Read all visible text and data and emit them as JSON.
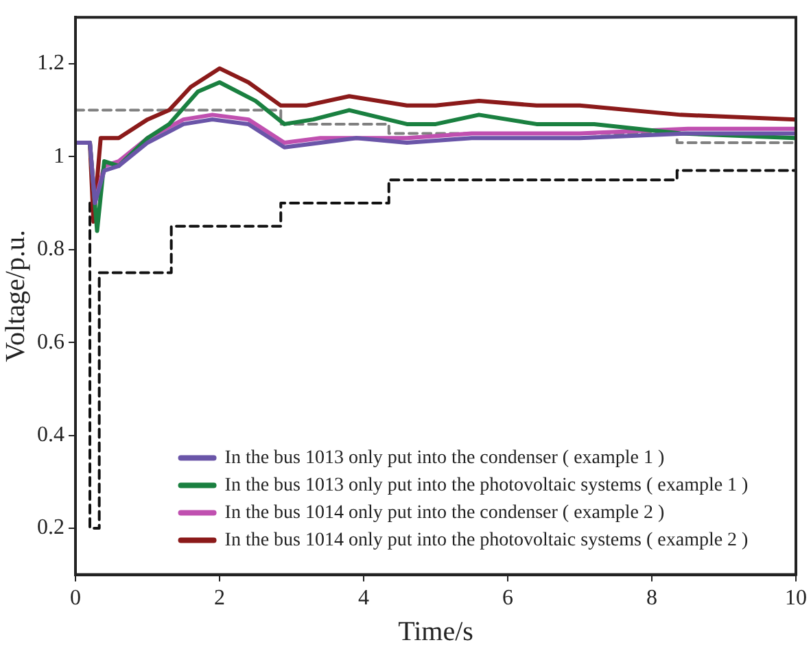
{
  "chart_data": {
    "type": "line",
    "xlabel": "Time/s",
    "ylabel": "Voltage/p.u.",
    "xlim": [
      0,
      10
    ],
    "xticks": [
      0,
      2,
      4,
      6,
      8,
      10
    ],
    "ylim": [
      0.1,
      1.3
    ],
    "yticks": [
      0.2,
      0.4,
      0.6,
      0.8,
      1.0,
      1.2
    ],
    "grid": false,
    "legend": "bottom",
    "marker": "none",
    "line_style": "solid",
    "series": [
      {
        "name": "In the bus 1013 only put into the condenser ( example 1 )",
        "color": "#6a55a8",
        "x": [
          0,
          0.2,
          0.27,
          0.4,
          0.6,
          1.0,
          1.5,
          1.9,
          2.4,
          2.9,
          3.4,
          3.9,
          4.6,
          5.5,
          7.0,
          8.5,
          10
        ],
        "values": [
          1.03,
          1.03,
          0.9,
          0.97,
          0.98,
          1.03,
          1.07,
          1.08,
          1.07,
          1.02,
          1.03,
          1.04,
          1.03,
          1.04,
          1.04,
          1.05,
          1.05
        ]
      },
      {
        "name": "In the bus 1013 only put into the photovoltaic systems ( example 1 )",
        "color": "#1a8040",
        "x": [
          0,
          0.2,
          0.3,
          0.4,
          0.6,
          1.0,
          1.3,
          1.7,
          2.0,
          2.5,
          2.9,
          3.3,
          3.8,
          4.6,
          5.0,
          5.6,
          6.4,
          7.2,
          8.4,
          10
        ],
        "values": [
          1.03,
          1.03,
          0.84,
          0.99,
          0.98,
          1.04,
          1.07,
          1.14,
          1.16,
          1.12,
          1.07,
          1.08,
          1.1,
          1.07,
          1.07,
          1.09,
          1.07,
          1.07,
          1.05,
          1.04
        ]
      },
      {
        "name": "In the bus 1014 only put into the condenser ( example 2 )",
        "color": "#c050b0",
        "x": [
          0,
          0.2,
          0.27,
          0.4,
          0.6,
          1.0,
          1.5,
          1.9,
          2.4,
          2.9,
          3.4,
          3.9,
          4.6,
          5.5,
          7.0,
          8.5,
          10
        ],
        "values": [
          1.03,
          1.03,
          0.9,
          0.98,
          0.99,
          1.04,
          1.08,
          1.09,
          1.08,
          1.03,
          1.04,
          1.04,
          1.04,
          1.05,
          1.05,
          1.06,
          1.06
        ]
      },
      {
        "name": "In the bus 1014 only put into the photovoltaic systems ( example 2 )",
        "color": "#8b1a1a",
        "x": [
          0,
          0.2,
          0.25,
          0.35,
          0.6,
          1.0,
          1.3,
          1.6,
          2.0,
          2.4,
          2.85,
          3.2,
          3.8,
          4.6,
          5.0,
          5.6,
          6.4,
          7.0,
          8.4,
          10
        ],
        "values": [
          1.03,
          1.03,
          0.86,
          1.04,
          1.04,
          1.08,
          1.1,
          1.15,
          1.19,
          1.16,
          1.11,
          1.11,
          1.13,
          1.11,
          1.11,
          1.12,
          1.11,
          1.11,
          1.09,
          1.08
        ]
      },
      {
        "color": "#808080",
        "line_style": "dashed",
        "x": [
          0,
          2.85,
          2.85,
          4.35,
          4.35,
          8.35,
          8.35,
          10
        ],
        "values": [
          1.1,
          1.1,
          1.07,
          1.07,
          1.05,
          1.05,
          1.03,
          1.03
        ]
      },
      {
        "color": "#111111",
        "line_style": "dashed",
        "x": [
          0.2,
          0.2,
          0.33,
          0.33,
          1.33,
          1.33,
          2.85,
          2.85,
          4.35,
          4.35,
          8.35,
          8.35,
          10
        ],
        "values": [
          0.9,
          0.2,
          0.2,
          0.75,
          0.75,
          0.85,
          0.85,
          0.9,
          0.9,
          0.95,
          0.95,
          0.97,
          0.97
        ]
      }
    ]
  }
}
